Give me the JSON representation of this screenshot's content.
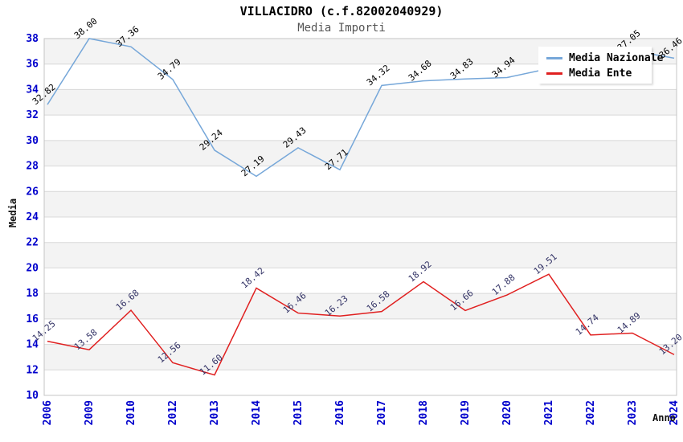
{
  "title": "VILLACIDRO (c.f.82002040929)",
  "subtitle": "Media Importi",
  "axes": {
    "y_title": "Media",
    "x_title": "Anno"
  },
  "legend": {
    "items": [
      {
        "label": "Media Nazionale",
        "color": "#76a7d9"
      },
      {
        "label": "Media Ente",
        "color": "#e02020"
      }
    ]
  },
  "chart_data": {
    "type": "line",
    "title": "VILLACIDRO (c.f.82002040929)",
    "subtitle": "Media Importi",
    "xlabel": "Anno",
    "ylabel": "Media",
    "ylim": [
      10,
      38
    ],
    "ytick_step": 2,
    "grid": true,
    "legend_position": "top-right",
    "categories": [
      "2006",
      "2009",
      "2010",
      "2012",
      "2013",
      "2014",
      "2015",
      "2016",
      "2017",
      "2018",
      "2019",
      "2020",
      "2021",
      "2022",
      "2023",
      "2024"
    ],
    "series": [
      {
        "name": "Media Nazionale",
        "color": "#76a7d9",
        "label_color": "#000000",
        "values": [
          32.82,
          38.0,
          37.36,
          34.79,
          29.24,
          27.19,
          29.43,
          27.71,
          34.32,
          34.68,
          34.83,
          34.94,
          null,
          null,
          37.05,
          36.46
        ]
      },
      {
        "name": "Media Ente",
        "color": "#e02020",
        "label_color": "#333366",
        "values": [
          14.25,
          13.58,
          16.68,
          12.56,
          11.6,
          18.42,
          16.46,
          16.23,
          16.58,
          18.92,
          16.66,
          17.88,
          19.51,
          14.74,
          14.89,
          13.2
        ]
      }
    ],
    "style": {
      "tick_color": "#0000cc",
      "grid_color": "#d8d8d8",
      "band_color": "#f3f3f3",
      "frame_color": "#c4c4c4",
      "value_label_rotation_deg": -40
    }
  }
}
